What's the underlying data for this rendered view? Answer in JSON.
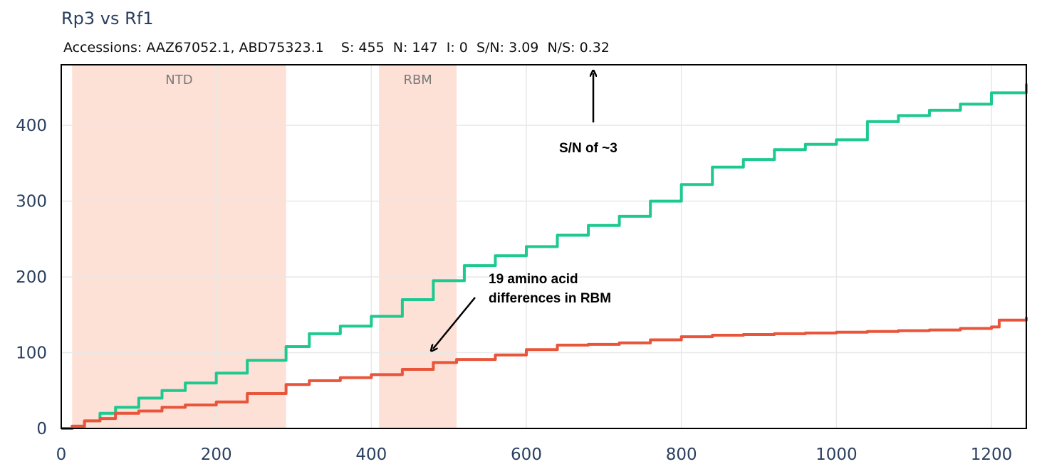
{
  "title": "Rp3 vs Rf1",
  "subtitle": "Accessions: AAZ67052.1, ABD75323.1    S: 455  N: 147  I: 0  S/N: 3.09  N/S: 0.32",
  "colors": {
    "synonymous": "#1ec98f",
    "nonsynonymous": "#e8553a",
    "insertions": "#f2a24b",
    "region_fill": "#fde0d6",
    "grid": "#e8e8e8",
    "axis_text": "#2a3f5f"
  },
  "chart_data": {
    "type": "line",
    "title": "Rp3 vs Rf1",
    "xlabel": "",
    "ylabel": "",
    "xlim": [
      0,
      1245
    ],
    "ylim": [
      0,
      480
    ],
    "grid": true,
    "x_ticks": [
      0,
      200,
      400,
      600,
      800,
      1000,
      1200
    ],
    "y_ticks": [
      0,
      100,
      200,
      300,
      400
    ],
    "regions": [
      {
        "label": "NTD",
        "x_start": 14,
        "x_end": 290
      },
      {
        "label": "RBM",
        "x_start": 410,
        "x_end": 510
      }
    ],
    "series": [
      {
        "name": "",
        "color": "#1ec98f",
        "x": [
          0,
          14,
          30,
          50,
          70,
          100,
          130,
          160,
          200,
          240,
          290,
          320,
          360,
          400,
          440,
          480,
          520,
          560,
          600,
          640,
          680,
          720,
          760,
          800,
          840,
          880,
          920,
          960,
          1000,
          1040,
          1080,
          1120,
          1160,
          1200,
          1245
        ],
        "y": [
          0,
          2,
          10,
          20,
          28,
          40,
          50,
          60,
          73,
          90,
          108,
          125,
          135,
          148,
          170,
          195,
          215,
          228,
          240,
          255,
          268,
          280,
          300,
          322,
          345,
          355,
          368,
          375,
          381,
          405,
          413,
          420,
          428,
          443,
          455
        ]
      },
      {
        "name": "",
        "color": "#e8553a",
        "x": [
          0,
          14,
          30,
          50,
          70,
          100,
          130,
          160,
          200,
          240,
          290,
          320,
          360,
          400,
          440,
          480,
          510,
          560,
          600,
          640,
          680,
          720,
          760,
          800,
          840,
          880,
          920,
          960,
          1000,
          1040,
          1080,
          1120,
          1160,
          1200,
          1210,
          1245
        ],
        "y": [
          0,
          3,
          10,
          13,
          20,
          23,
          28,
          31,
          35,
          46,
          58,
          63,
          67,
          71,
          78,
          87,
          91,
          97,
          104,
          110,
          111,
          113,
          117,
          121,
          123,
          124,
          125,
          126,
          127,
          128,
          129,
          130,
          132,
          134,
          143,
          147
        ]
      },
      {
        "name": "",
        "color": "#f2a24b",
        "x": [
          0,
          1245
        ],
        "y": [
          0,
          0
        ]
      }
    ],
    "annotations": [
      {
        "text": "S/N of ~3"
      },
      {
        "text_lines": [
          "19 amino acid",
          "differences in RBM"
        ]
      }
    ]
  }
}
